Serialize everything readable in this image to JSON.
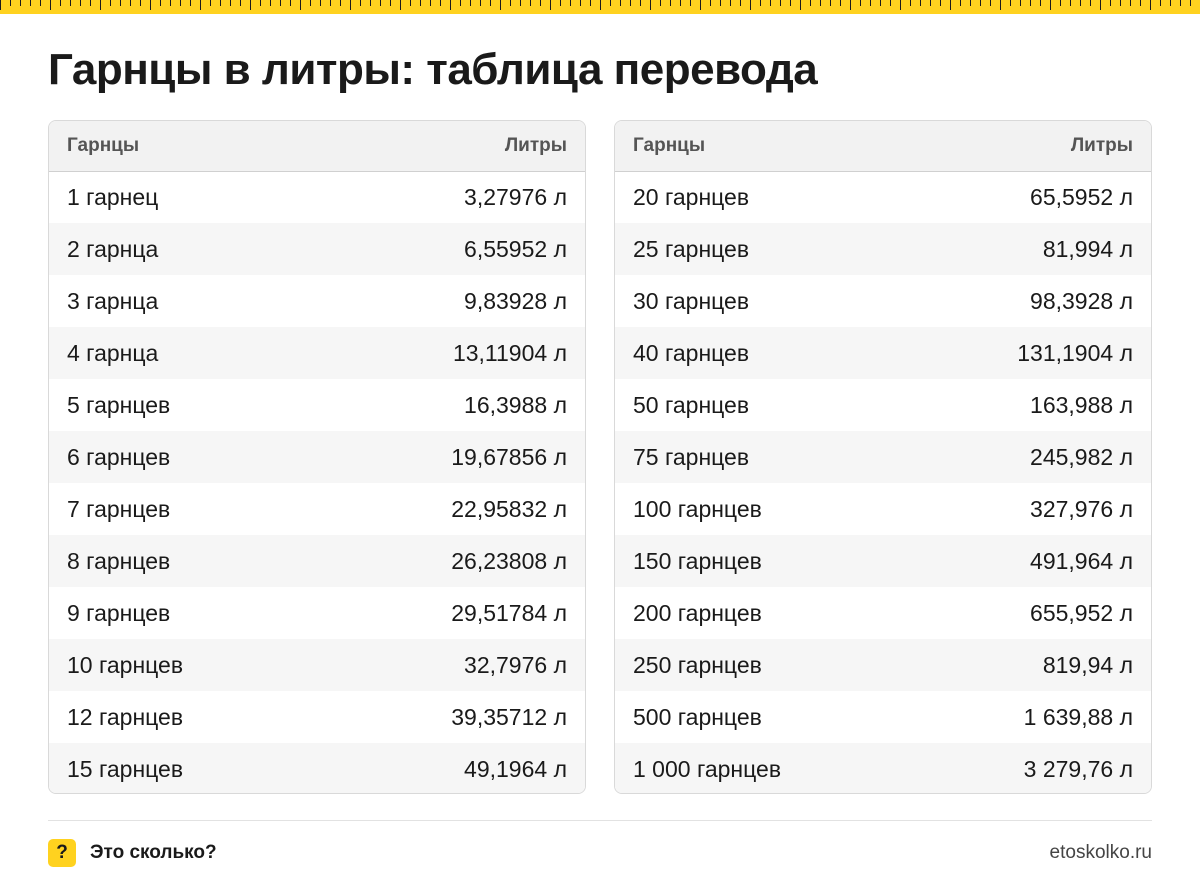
{
  "title": "Гарнцы в литры: таблица перевода",
  "colors": {
    "accent": "#ffd21f",
    "text": "#1a1a1a",
    "header_bg": "#f2f2f2",
    "zebra": "#f6f6f6"
  },
  "tables": [
    {
      "headers": {
        "name": "Гарнцы",
        "value": "Литры"
      },
      "rows": [
        {
          "name": "1 гарнец",
          "value": "3,27976 л"
        },
        {
          "name": "2 гарнца",
          "value": "6,55952 л"
        },
        {
          "name": "3 гарнца",
          "value": "9,83928 л"
        },
        {
          "name": "4 гарнца",
          "value": "13,11904 л"
        },
        {
          "name": "5 гарнцев",
          "value": "16,3988 л"
        },
        {
          "name": "6 гарнцев",
          "value": "19,67856 л"
        },
        {
          "name": "7 гарнцев",
          "value": "22,95832 л"
        },
        {
          "name": "8 гарнцев",
          "value": "26,23808 л"
        },
        {
          "name": "9 гарнцев",
          "value": "29,51784 л"
        },
        {
          "name": "10 гарнцев",
          "value": "32,7976 л"
        },
        {
          "name": "12 гарнцев",
          "value": "39,35712 л"
        },
        {
          "name": "15 гарнцев",
          "value": "49,1964 л"
        }
      ]
    },
    {
      "headers": {
        "name": "Гарнцы",
        "value": "Литры"
      },
      "rows": [
        {
          "name": "20 гарнцев",
          "value": "65,5952 л"
        },
        {
          "name": "25 гарнцев",
          "value": "81,994 л"
        },
        {
          "name": "30 гарнцев",
          "value": "98,3928 л"
        },
        {
          "name": "40 гарнцев",
          "value": "131,1904 л"
        },
        {
          "name": "50 гарнцев",
          "value": "163,988 л"
        },
        {
          "name": "75 гарнцев",
          "value": "245,982 л"
        },
        {
          "name": "100 гарнцев",
          "value": "327,976 л"
        },
        {
          "name": "150 гарнцев",
          "value": "491,964 л"
        },
        {
          "name": "200 гарнцев",
          "value": "655,952 л"
        },
        {
          "name": "250 гарнцев",
          "value": "819,94 л"
        },
        {
          "name": "500 гарнцев",
          "value": "1 639,88 л"
        },
        {
          "name": "1 000 гарнцев",
          "value": "3 279,76 л"
        }
      ]
    }
  ],
  "footer": {
    "logo_symbol": "?",
    "brand": "Это сколько?",
    "site": "etoskolko.ru"
  }
}
